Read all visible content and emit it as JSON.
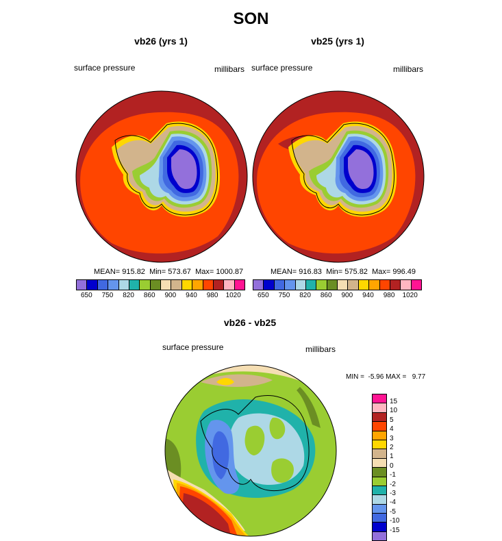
{
  "title": "SON",
  "panels": [
    {
      "title": "vb26 (yrs 1)",
      "left_label": "surface pressure",
      "right_label": "millibars",
      "stats": {
        "mean_label": "MEAN=",
        "mean": "915.82",
        "min_label": "Min=",
        "min": "573.67",
        "max_label": "Max=",
        "max": "1000.87"
      }
    },
    {
      "title": "vb25 (yrs 1)",
      "left_label": "surface pressure",
      "right_label": "millibars",
      "stats": {
        "mean_label": "MEAN=",
        "mean": "916.83",
        "min_label": "Min=",
        "min": "575.82",
        "max_label": "Max=",
        "max": "996.49"
      }
    }
  ],
  "colorbar": {
    "colors": [
      "#9370db",
      "#0000cd",
      "#4169e1",
      "#6495ed",
      "#add8e6",
      "#20b2aa",
      "#9acd32",
      "#6b8e23",
      "#f5deb3",
      "#d2b48c",
      "#ffd700",
      "#ffa500",
      "#ff4500",
      "#b22222",
      "#ffb6c1",
      "#ff1493"
    ],
    "tick_labels": [
      "650",
      "750",
      "820",
      "860",
      "900",
      "940",
      "980",
      "1020"
    ]
  },
  "diff": {
    "title": "vb26 - vb25",
    "left_label": "surface pressure",
    "right_label": "millibars",
    "minmax": "MIN =  -5.96 MAX =   9.77",
    "levels": [
      "15",
      "10",
      "5",
      "4",
      "3",
      "2",
      "1",
      "0",
      "-1",
      "-2",
      "-3",
      "-4",
      "-5",
      "-10",
      "-15"
    ],
    "colors": [
      "#ff1493",
      "#ffb6c1",
      "#b22222",
      "#ff4500",
      "#ffa500",
      "#ffd700",
      "#d2b48c",
      "#f5deb3",
      "#6b8e23",
      "#9acd32",
      "#20b2aa",
      "#add8e6",
      "#6495ed",
      "#4169e1",
      "#0000cd",
      "#9370db"
    ]
  }
}
